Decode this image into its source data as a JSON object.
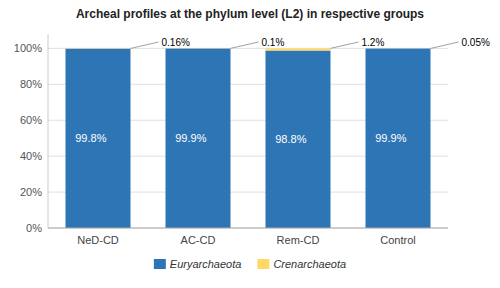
{
  "chart_data": {
    "type": "bar",
    "stacked": true,
    "title": "Archeal profiles at the phylum level (L2) in respective groups",
    "categories": [
      "NeD-CD",
      "AC-CD",
      "Rem-CD",
      "Control"
    ],
    "series": [
      {
        "name": "Euryarchaeota",
        "color": "#2E75B6",
        "values": [
          99.8,
          99.9,
          98.8,
          99.9
        ],
        "value_labels": [
          "99.8%",
          "99.9%",
          "98.8%",
          "99.9%"
        ]
      },
      {
        "name": "Crenarchaeota",
        "color": "#FFD966",
        "values": [
          0.16,
          0.1,
          1.2,
          0.05
        ],
        "value_labels": [
          "0.16%",
          "0.1%",
          "1.2%",
          "0.05%"
        ]
      }
    ],
    "ylim": [
      0,
      108
    ],
    "yticks": [
      {
        "value": 0,
        "label": "0%"
      },
      {
        "value": 20,
        "label": "20%"
      },
      {
        "value": 40,
        "label": "40%"
      },
      {
        "value": 60,
        "label": "60%"
      },
      {
        "value": 80,
        "label": "80%"
      },
      {
        "value": 100,
        "label": "100%"
      }
    ],
    "grid": true,
    "data_labels": true,
    "legend": "bottom"
  }
}
